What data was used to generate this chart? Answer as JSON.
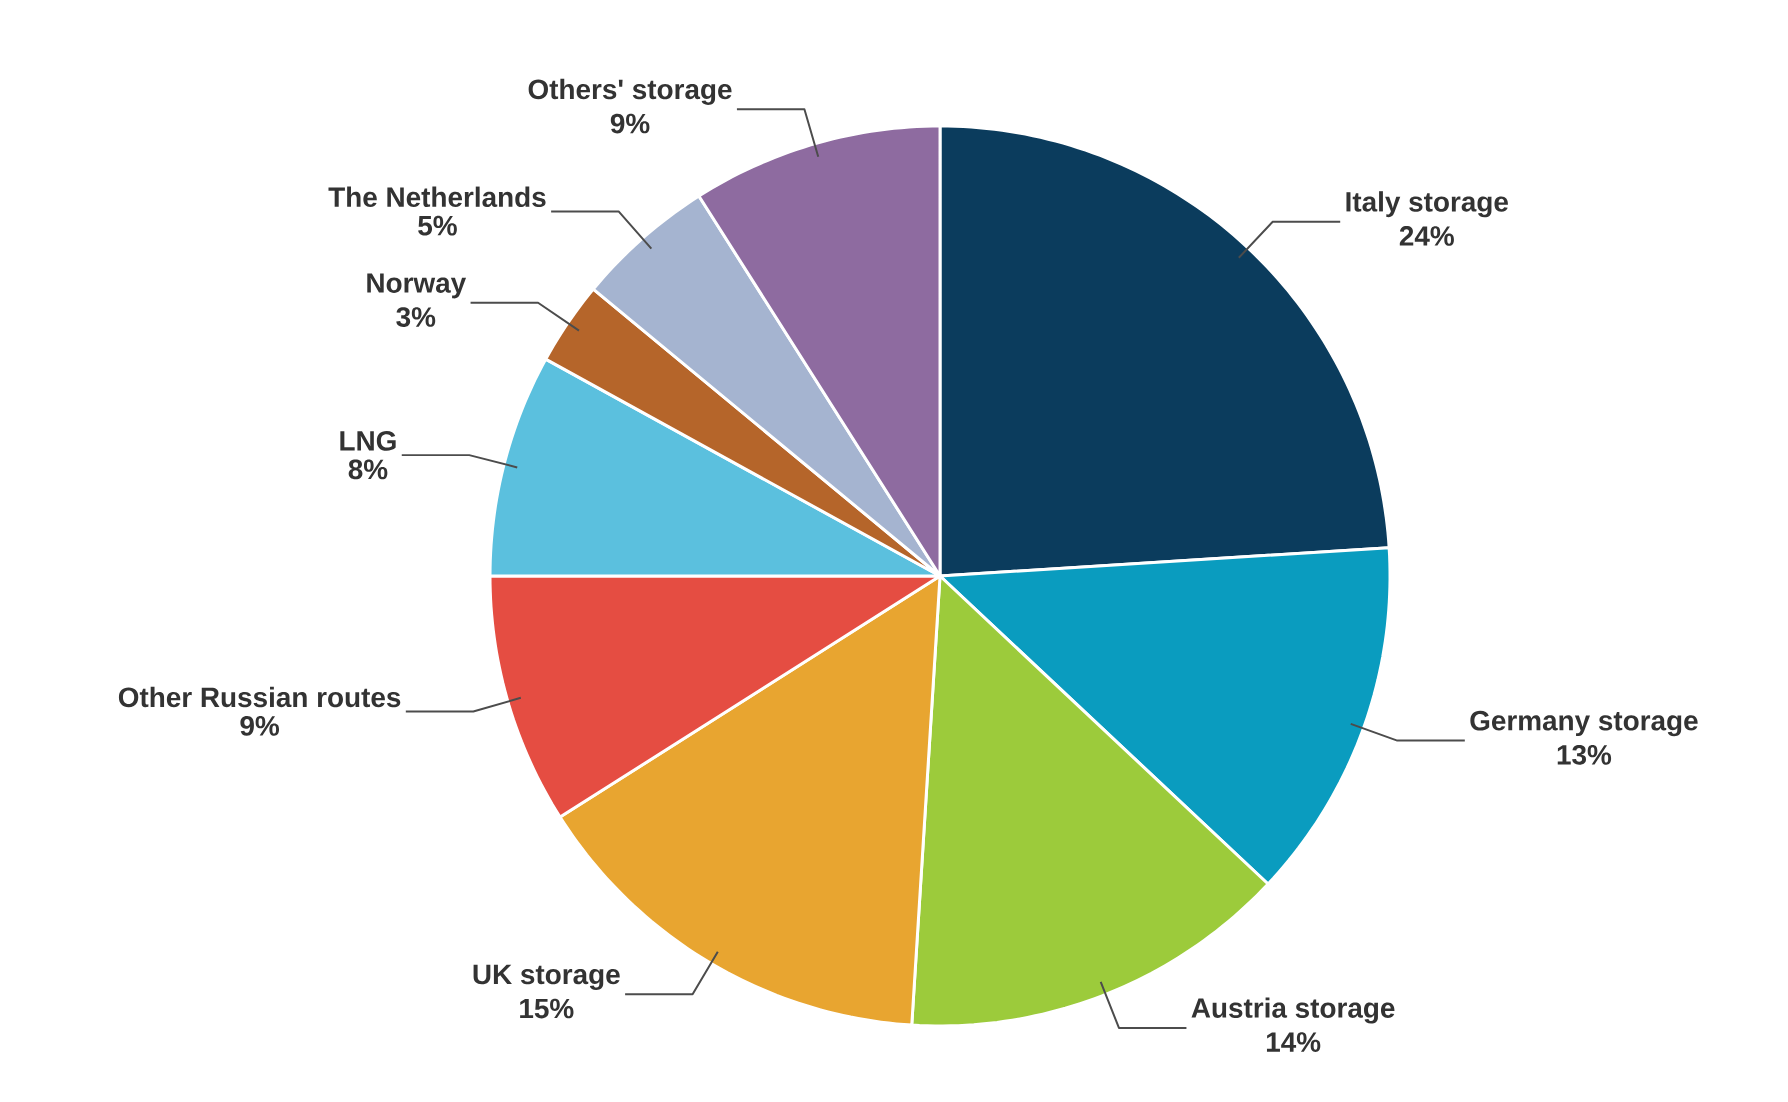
{
  "chart_data": {
    "type": "pie",
    "categories": [
      "Italy storage",
      "Germany storage",
      "Austria storage",
      "UK storage",
      "Other Russian routes",
      "LNG",
      "Norway",
      "The Netherlands",
      "Others' storage"
    ],
    "values": [
      24,
      13,
      14,
      15,
      9,
      8,
      3,
      5,
      9
    ],
    "value_labels": [
      "24%",
      "13%",
      "14%",
      "15%",
      "9%",
      "8%",
      "3%",
      "5%",
      "9%"
    ],
    "colors": [
      "#0b3c5d",
      "#0a9cbf",
      "#9ccb3b",
      "#e8a530",
      "#e54d42",
      "#5bc0de",
      "#b5652a",
      "#a5b4d0",
      "#8e6ba0"
    ]
  }
}
